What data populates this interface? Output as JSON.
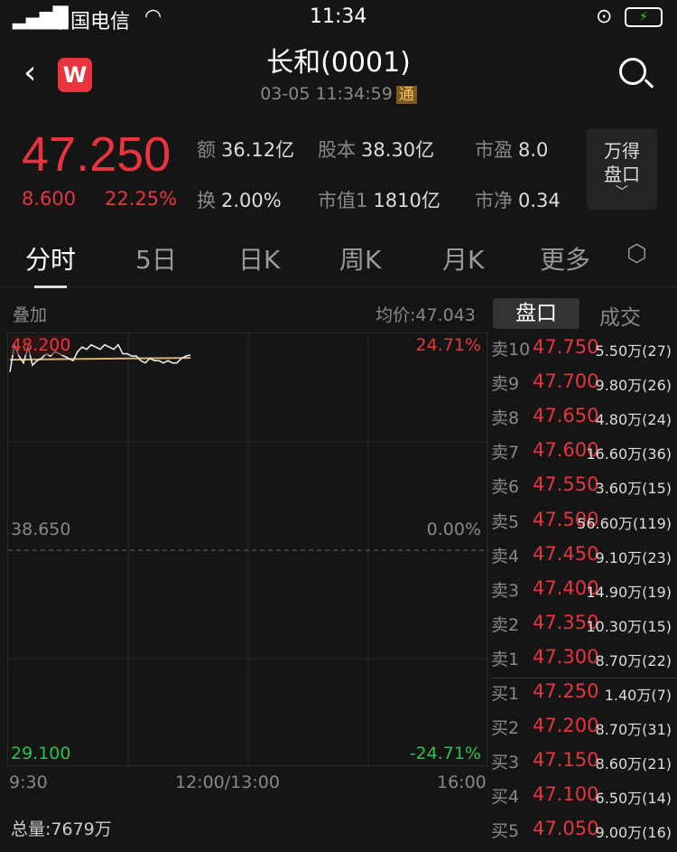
{
  "status_bar": {
    "carrier": "中国电信",
    "time": "11:34"
  },
  "header": {
    "title": "长和(0001)",
    "datetime": "03-05 11:34:59",
    "badge": "通",
    "app_logo": "W"
  },
  "quote": {
    "price": "47.250",
    "change": "8.600",
    "change_pct": "22.25%",
    "stats": [
      {
        "k": "额",
        "v": "36.12亿"
      },
      {
        "k": "股本",
        "v": "38.30亿"
      },
      {
        "k": "市盈",
        "v": "8.0"
      },
      {
        "k": "换",
        "v": "2.00%"
      },
      {
        "k": "市值1",
        "v": "1810亿"
      },
      {
        "k": "市净",
        "v": "0.34"
      }
    ],
    "wande_btn": [
      "万得",
      "盘口"
    ]
  },
  "tabs": [
    "分时",
    "5日",
    "日K",
    "周K",
    "月K",
    "更多"
  ],
  "chart_header": {
    "overlay": "叠加",
    "avg_label": "均价:47.043"
  },
  "side_tabs": [
    "盘口",
    "成交"
  ],
  "chart_data": {
    "type": "line",
    "y_top": "48.200",
    "y_mid": "38.650",
    "y_bottom": "29.100",
    "pct_top": "24.71%",
    "pct_mid": "0.00%",
    "pct_bottom": "-24.71%",
    "x_ticks": [
      "9:30",
      "12:00/13:00",
      "16:00"
    ],
    "ylim": [
      29.1,
      48.2
    ],
    "avg_price": 47.043,
    "price": [
      46.5,
      47.7,
      47.2,
      46.9,
      47.6,
      46.8,
      47.0,
      47.1,
      47.3,
      47.2,
      47.4,
      47.3,
      47.2,
      47.1,
      47.0,
      47.4,
      47.6,
      47.5,
      47.7,
      47.6,
      47.5,
      47.7,
      47.6,
      47.5,
      47.7,
      47.3,
      47.3,
      47.2,
      47.2,
      47.0,
      46.9,
      47.1,
      47.0,
      47.0,
      46.9,
      47.0,
      46.9,
      46.9,
      47.1,
      47.2,
      47.25
    ],
    "colors": {
      "price": "#e8e8e8",
      "avg": "#d8b070"
    }
  },
  "order_book": [
    {
      "n": "卖10",
      "p": "47.750",
      "v": "5.50万(27)"
    },
    {
      "n": "卖9",
      "p": "47.700",
      "v": "9.80万(26)"
    },
    {
      "n": "卖8",
      "p": "47.650",
      "v": "4.80万(24)"
    },
    {
      "n": "卖7",
      "p": "47.600",
      "v": "16.60万(36)"
    },
    {
      "n": "卖6",
      "p": "47.550",
      "v": "3.60万(15)"
    },
    {
      "n": "卖5",
      "p": "47.500",
      "v": "56.60万(119)"
    },
    {
      "n": "卖4",
      "p": "47.450",
      "v": "9.10万(23)"
    },
    {
      "n": "卖3",
      "p": "47.400",
      "v": "14.90万(19)"
    },
    {
      "n": "卖2",
      "p": "47.350",
      "v": "10.30万(15)"
    },
    {
      "n": "卖1",
      "p": "47.300",
      "v": "8.70万(22)"
    },
    {
      "n": "买1",
      "p": "47.250",
      "v": "1.40万(7)"
    },
    {
      "n": "买2",
      "p": "47.200",
      "v": "8.70万(31)"
    },
    {
      "n": "买3",
      "p": "47.150",
      "v": "8.60万(21)"
    },
    {
      "n": "买4",
      "p": "47.100",
      "v": "6.50万(14)"
    },
    {
      "n": "买5",
      "p": "47.050",
      "v": "9.00万(16)"
    }
  ],
  "volume": "总量:7679万"
}
